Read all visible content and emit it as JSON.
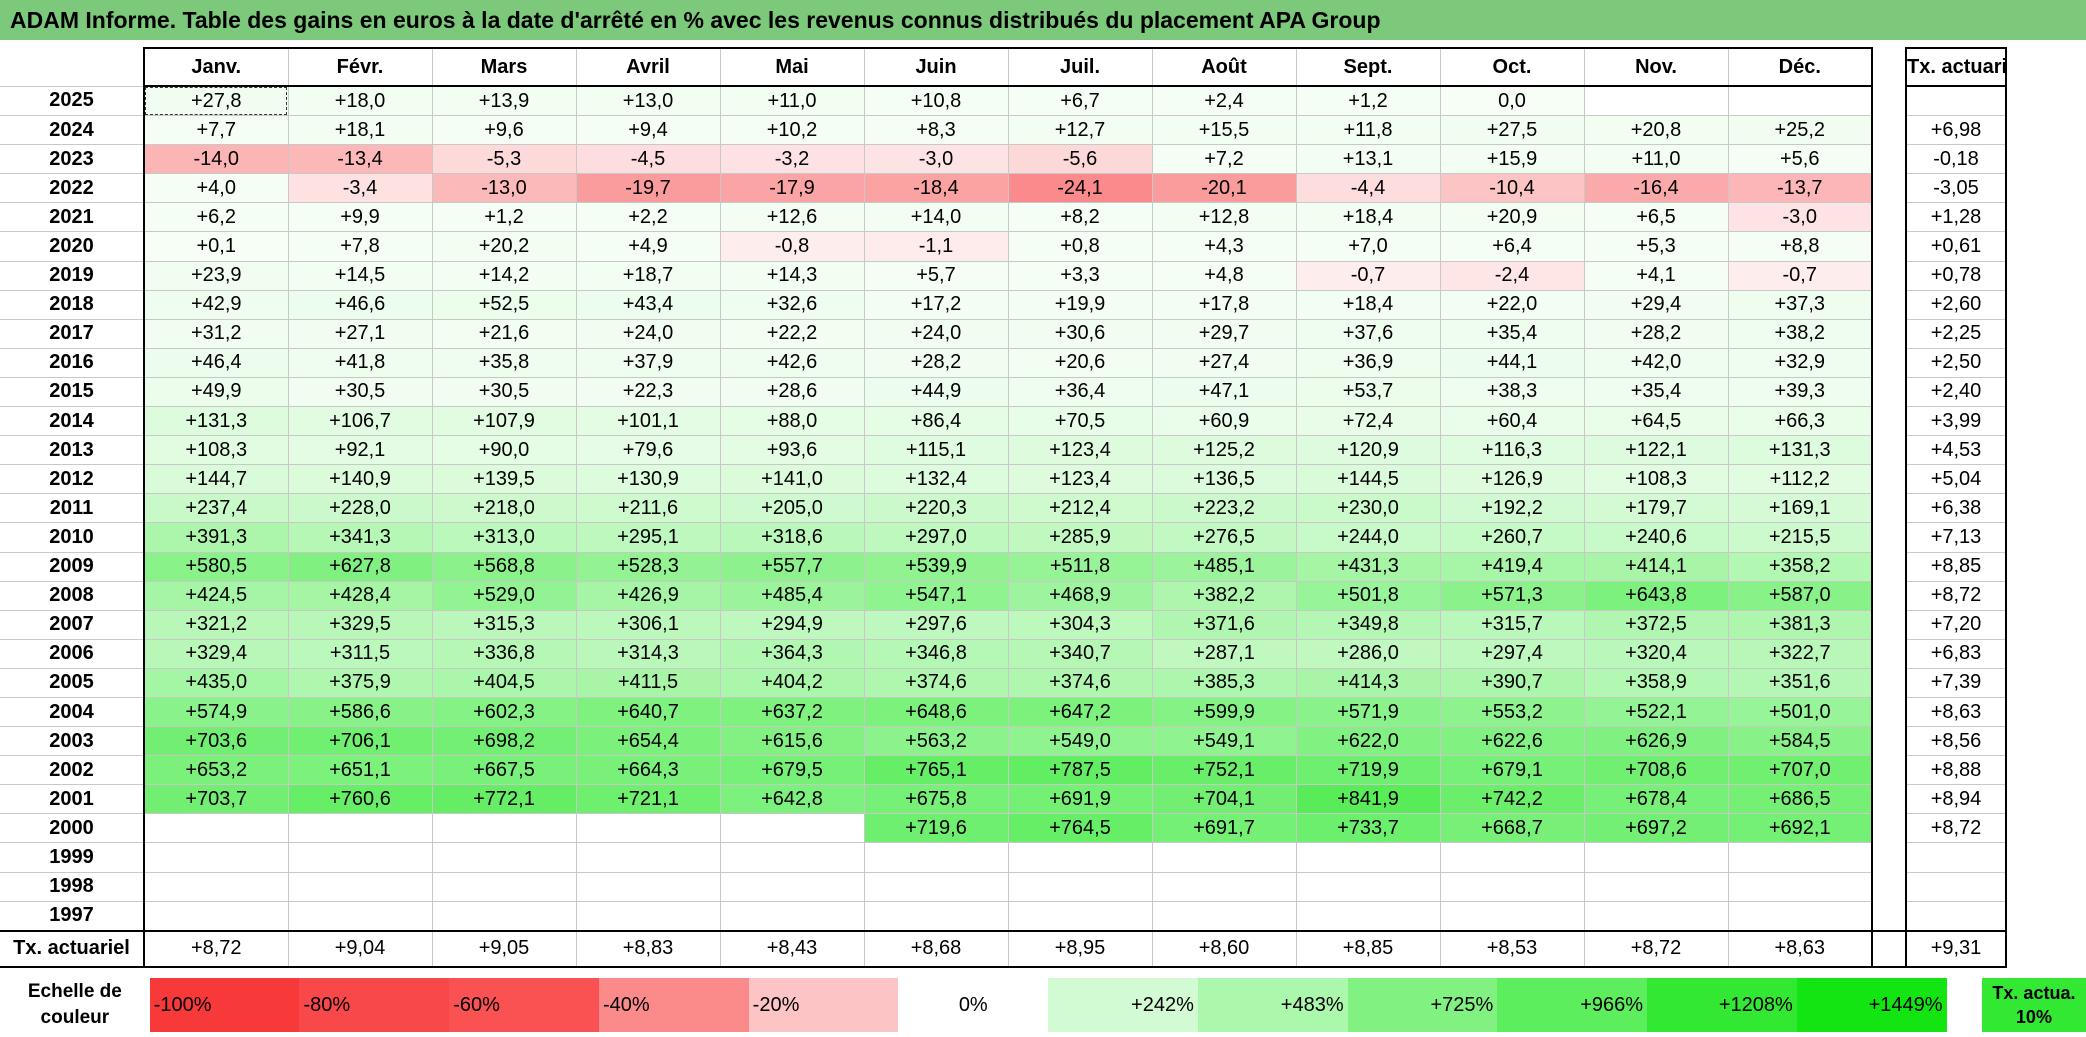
{
  "title": "ADAM Informe. Table des gains en euros à la date d'arrêté en % avec les revenus connus distribués du placement APA Group",
  "months": [
    "Janv.",
    "Févr.",
    "Mars",
    "Avril",
    "Mai",
    "Juin",
    "Juil.",
    "Août",
    "Sept.",
    "Oct.",
    "Nov.",
    "Déc."
  ],
  "tx_header": "Tx. actuariel",
  "rows": [
    {
      "year": "2025",
      "values": [
        "+27,8",
        "+18,0",
        "+13,9",
        "+13,0",
        "+11,0",
        "+10,8",
        "+6,7",
        "+2,4",
        "+1,2",
        "0,0",
        "",
        ""
      ],
      "tx": ""
    },
    {
      "year": "2024",
      "values": [
        "+7,7",
        "+18,1",
        "+9,6",
        "+9,4",
        "+10,2",
        "+8,3",
        "+12,7",
        "+15,5",
        "+11,8",
        "+27,5",
        "+20,8",
        "+25,2"
      ],
      "tx": "+6,98"
    },
    {
      "year": "2023",
      "values": [
        "-14,0",
        "-13,4",
        "-5,3",
        "-4,5",
        "-3,2",
        "-3,0",
        "-5,6",
        "+7,2",
        "+13,1",
        "+15,9",
        "+11,0",
        "+5,6"
      ],
      "tx": "-0,18"
    },
    {
      "year": "2022",
      "values": [
        "+4,0",
        "-3,4",
        "-13,0",
        "-19,7",
        "-17,9",
        "-18,4",
        "-24,1",
        "-20,1",
        "-4,4",
        "-10,4",
        "-16,4",
        "-13,7"
      ],
      "tx": "-3,05"
    },
    {
      "year": "2021",
      "values": [
        "+6,2",
        "+9,9",
        "+1,2",
        "+2,2",
        "+12,6",
        "+14,0",
        "+8,2",
        "+12,8",
        "+18,4",
        "+20,9",
        "+6,5",
        "-3,0"
      ],
      "tx": "+1,28"
    },
    {
      "year": "2020",
      "values": [
        "+0,1",
        "+7,8",
        "+20,2",
        "+4,9",
        "-0,8",
        "-1,1",
        "+0,8",
        "+4,3",
        "+7,0",
        "+6,4",
        "+5,3",
        "+8,8"
      ],
      "tx": "+0,61"
    },
    {
      "year": "2019",
      "values": [
        "+23,9",
        "+14,5",
        "+14,2",
        "+18,7",
        "+14,3",
        "+5,7",
        "+3,3",
        "+4,8",
        "-0,7",
        "-2,4",
        "+4,1",
        "-0,7"
      ],
      "tx": "+0,78"
    },
    {
      "year": "2018",
      "values": [
        "+42,9",
        "+46,6",
        "+52,5",
        "+43,4",
        "+32,6",
        "+17,2",
        "+19,9",
        "+17,8",
        "+18,4",
        "+22,0",
        "+29,4",
        "+37,3"
      ],
      "tx": "+2,60"
    },
    {
      "year": "2017",
      "values": [
        "+31,2",
        "+27,1",
        "+21,6",
        "+24,0",
        "+22,2",
        "+24,0",
        "+30,6",
        "+29,7",
        "+37,6",
        "+35,4",
        "+28,2",
        "+38,2"
      ],
      "tx": "+2,25"
    },
    {
      "year": "2016",
      "values": [
        "+46,4",
        "+41,8",
        "+35,8",
        "+37,9",
        "+42,6",
        "+28,2",
        "+20,6",
        "+27,4",
        "+36,9",
        "+44,1",
        "+42,0",
        "+32,9"
      ],
      "tx": "+2,50"
    },
    {
      "year": "2015",
      "values": [
        "+49,9",
        "+30,5",
        "+30,5",
        "+22,3",
        "+28,6",
        "+44,9",
        "+36,4",
        "+47,1",
        "+53,7",
        "+38,3",
        "+35,4",
        "+39,3"
      ],
      "tx": "+2,40"
    },
    {
      "year": "2014",
      "values": [
        "+131,3",
        "+106,7",
        "+107,9",
        "+101,1",
        "+88,0",
        "+86,4",
        "+70,5",
        "+60,9",
        "+72,4",
        "+60,4",
        "+64,5",
        "+66,3"
      ],
      "tx": "+3,99"
    },
    {
      "year": "2013",
      "values": [
        "+108,3",
        "+92,1",
        "+90,0",
        "+79,6",
        "+93,6",
        "+115,1",
        "+123,4",
        "+125,2",
        "+120,9",
        "+116,3",
        "+122,1",
        "+131,3"
      ],
      "tx": "+4,53"
    },
    {
      "year": "2012",
      "values": [
        "+144,7",
        "+140,9",
        "+139,5",
        "+130,9",
        "+141,0",
        "+132,4",
        "+123,4",
        "+136,5",
        "+144,5",
        "+126,9",
        "+108,3",
        "+112,2"
      ],
      "tx": "+5,04"
    },
    {
      "year": "2011",
      "values": [
        "+237,4",
        "+228,0",
        "+218,0",
        "+211,6",
        "+205,0",
        "+220,3",
        "+212,4",
        "+223,2",
        "+230,0",
        "+192,2",
        "+179,7",
        "+169,1"
      ],
      "tx": "+6,38"
    },
    {
      "year": "2010",
      "values": [
        "+391,3",
        "+341,3",
        "+313,0",
        "+295,1",
        "+318,6",
        "+297,0",
        "+285,9",
        "+276,5",
        "+244,0",
        "+260,7",
        "+240,6",
        "+215,5"
      ],
      "tx": "+7,13"
    },
    {
      "year": "2009",
      "values": [
        "+580,5",
        "+627,8",
        "+568,8",
        "+528,3",
        "+557,7",
        "+539,9",
        "+511,8",
        "+485,1",
        "+431,3",
        "+419,4",
        "+414,1",
        "+358,2"
      ],
      "tx": "+8,85"
    },
    {
      "year": "2008",
      "values": [
        "+424,5",
        "+428,4",
        "+529,0",
        "+426,9",
        "+485,4",
        "+547,1",
        "+468,9",
        "+382,2",
        "+501,8",
        "+571,3",
        "+643,8",
        "+587,0"
      ],
      "tx": "+8,72"
    },
    {
      "year": "2007",
      "values": [
        "+321,2",
        "+329,5",
        "+315,3",
        "+306,1",
        "+294,9",
        "+297,6",
        "+304,3",
        "+371,6",
        "+349,8",
        "+315,7",
        "+372,5",
        "+381,3"
      ],
      "tx": "+7,20"
    },
    {
      "year": "2006",
      "values": [
        "+329,4",
        "+311,5",
        "+336,8",
        "+314,3",
        "+364,3",
        "+346,8",
        "+340,7",
        "+287,1",
        "+286,0",
        "+297,4",
        "+320,4",
        "+322,7"
      ],
      "tx": "+6,83"
    },
    {
      "year": "2005",
      "values": [
        "+435,0",
        "+375,9",
        "+404,5",
        "+411,5",
        "+404,2",
        "+374,6",
        "+374,6",
        "+385,3",
        "+414,3",
        "+390,7",
        "+358,9",
        "+351,6"
      ],
      "tx": "+7,39"
    },
    {
      "year": "2004",
      "values": [
        "+574,9",
        "+586,6",
        "+602,3",
        "+640,7",
        "+637,2",
        "+648,6",
        "+647,2",
        "+599,9",
        "+571,9",
        "+553,2",
        "+522,1",
        "+501,0"
      ],
      "tx": "+8,63"
    },
    {
      "year": "2003",
      "values": [
        "+703,6",
        "+706,1",
        "+698,2",
        "+654,4",
        "+615,6",
        "+563,2",
        "+549,0",
        "+549,1",
        "+622,0",
        "+622,6",
        "+626,9",
        "+584,5"
      ],
      "tx": "+8,56"
    },
    {
      "year": "2002",
      "values": [
        "+653,2",
        "+651,1",
        "+667,5",
        "+664,3",
        "+679,5",
        "+765,1",
        "+787,5",
        "+752,1",
        "+719,9",
        "+679,1",
        "+708,6",
        "+707,0"
      ],
      "tx": "+8,88"
    },
    {
      "year": "2001",
      "values": [
        "+703,7",
        "+760,6",
        "+772,1",
        "+721,1",
        "+642,8",
        "+675,8",
        "+691,9",
        "+704,1",
        "+841,9",
        "+742,2",
        "+678,4",
        "+686,5"
      ],
      "tx": "+8,94"
    },
    {
      "year": "2000",
      "values": [
        "",
        "",
        "",
        "",
        "",
        "+719,6",
        "+764,5",
        "+691,7",
        "+733,7",
        "+668,7",
        "+697,2",
        "+692,1"
      ],
      "tx": "+8,72"
    },
    {
      "year": "1999",
      "values": [
        "",
        "",
        "",
        "",
        "",
        "",
        "",
        "",
        "",
        "",
        "",
        ""
      ],
      "tx": ""
    },
    {
      "year": "1998",
      "values": [
        "",
        "",
        "",
        "",
        "",
        "",
        "",
        "",
        "",
        "",
        "",
        ""
      ],
      "tx": ""
    },
    {
      "year": "1997",
      "values": [
        "",
        "",
        "",
        "",
        "",
        "",
        "",
        "",
        "",
        "",
        "",
        ""
      ],
      "tx": ""
    }
  ],
  "avg_row": {
    "label": "Tx. actuariel",
    "values": [
      "+8,72",
      "+9,04",
      "+9,05",
      "+8,83",
      "+8,43",
      "+8,68",
      "+8,95",
      "+8,60",
      "+8,85",
      "+8,53",
      "+8,72",
      "+8,63"
    ],
    "tx": "+9,31"
  },
  "scale": {
    "label": "Echelle de couleur",
    "items": [
      {
        "text": "-100%",
        "color": "#f8393a"
      },
      {
        "text": "-80%",
        "color": "#f9484a"
      },
      {
        "text": "-60%",
        "color": "#fa5152"
      },
      {
        "text": "-40%",
        "color": "#fb8a8b"
      },
      {
        "text": "-20%",
        "color": "#fdc4c5"
      },
      {
        "text": "0%",
        "color": "#ffffff"
      },
      {
        "text": "+242%",
        "color": "#d3fbd3"
      },
      {
        "text": "+483%",
        "color": "#abf7ab"
      },
      {
        "text": "+725%",
        "color": "#81f281"
      },
      {
        "text": "+966%",
        "color": "#5cee5c"
      },
      {
        "text": "+1208%",
        "color": "#33e833"
      },
      {
        "text": "+1449%",
        "color": "#13e513"
      }
    ],
    "tx_label": "Tx. actua. 10%",
    "tx_color": "#33e833"
  },
  "colors": {
    "title_bg": "#7cc97c",
    "negative_max": "#f8696b",
    "positive_max": "#13e513"
  }
}
